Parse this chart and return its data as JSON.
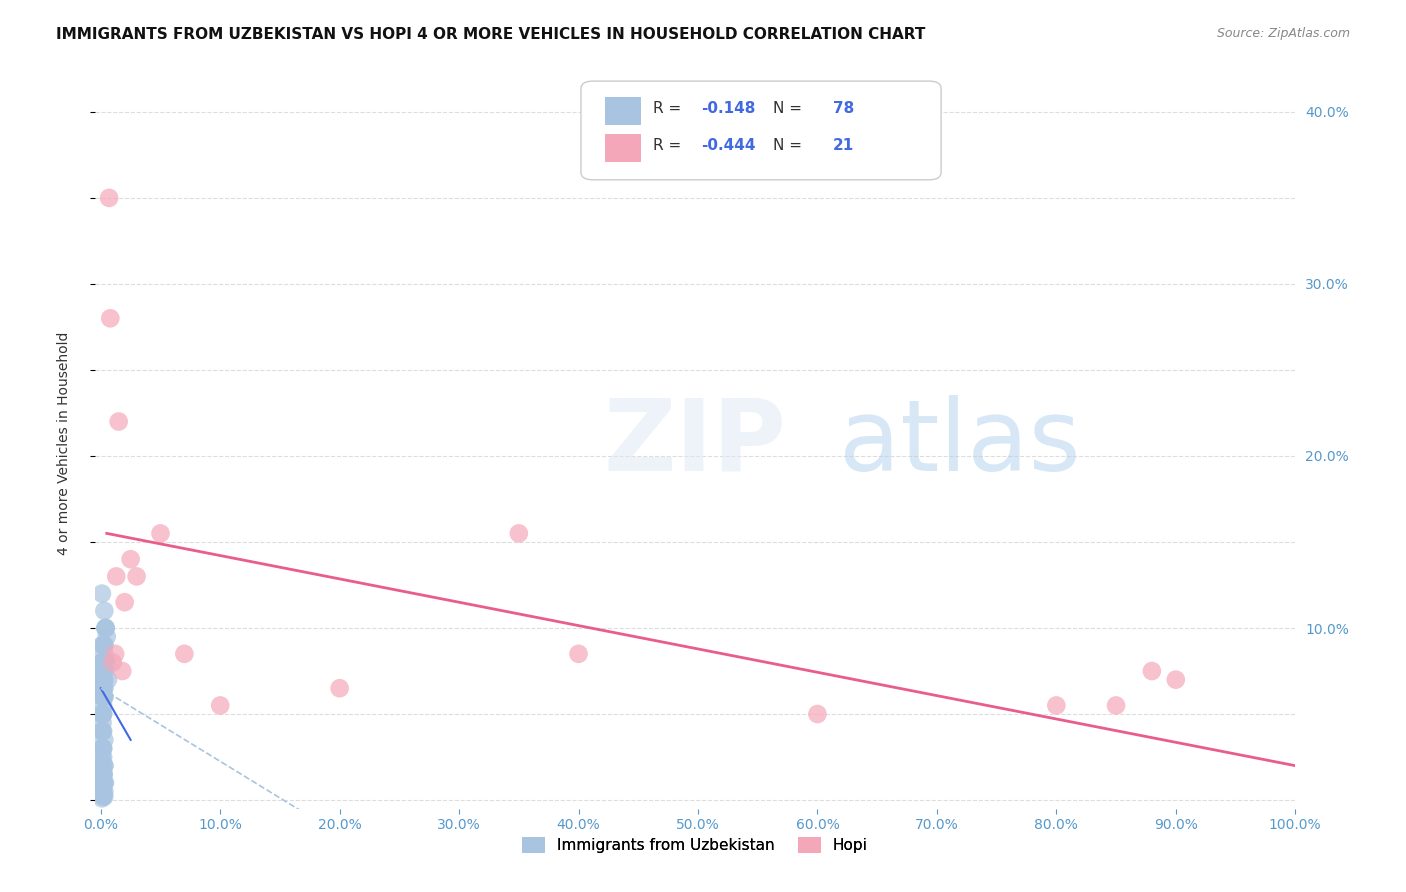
{
  "title": "IMMIGRANTS FROM UZBEKISTAN VS HOPI 4 OR MORE VEHICLES IN HOUSEHOLD CORRELATION CHART",
  "source": "Source: ZipAtlas.com",
  "xlabel": "",
  "ylabel": "4 or more Vehicles in Household",
  "legend_label_1": "Immigrants from Uzbekistan",
  "legend_label_2": "Hopi",
  "r1": -0.148,
  "n1": 78,
  "r2": -0.444,
  "n2": 21,
  "color1": "#a8c4e0",
  "color2": "#f4a7b9",
  "line_color1": "#4169e1",
  "line_color2": "#e85d8a",
  "dashed_line_color": "#a8c4e0",
  "background_color": "#ffffff",
  "grid_color": "#dddddd",
  "right_axis_color": "#5599cc",
  "title_fontsize": 11,
  "watermark": "ZIPatlas",
  "xlim": [
    -0.005,
    1.0
  ],
  "ylim": [
    -0.005,
    0.42
  ],
  "x_ticks": [
    0.0,
    0.1,
    0.2,
    0.3,
    0.4,
    0.5,
    0.6,
    0.7,
    0.8,
    0.9,
    1.0
  ],
  "y_ticks_left": [
    0.0,
    0.05,
    0.1,
    0.15,
    0.2,
    0.25,
    0.3,
    0.35,
    0.4
  ],
  "y_ticks_right_labels": [
    "",
    "10.0%",
    "20.0%",
    "30.0%",
    "40.0%"
  ],
  "y_ticks_right_vals": [
    0.0,
    0.1,
    0.2,
    0.3,
    0.4
  ],
  "uzbek_x": [
    0.001,
    0.002,
    0.001,
    0.003,
    0.0015,
    0.002,
    0.004,
    0.003,
    0.001,
    0.005,
    0.006,
    0.0025,
    0.0035,
    0.001,
    0.002,
    0.0015,
    0.003,
    0.002,
    0.001,
    0.004,
    0.005,
    0.003,
    0.0025,
    0.001,
    0.002,
    0.003,
    0.001,
    0.0015,
    0.002,
    0.0035,
    0.001,
    0.002,
    0.003,
    0.004,
    0.001,
    0.002,
    0.0015,
    0.003,
    0.002,
    0.001,
    0.0025,
    0.003,
    0.002,
    0.001,
    0.001,
    0.002,
    0.003,
    0.001,
    0.0015,
    0.002,
    0.003,
    0.002,
    0.001,
    0.001,
    0.002,
    0.001,
    0.002,
    0.001,
    0.003,
    0.002,
    0.001,
    0.0015,
    0.002,
    0.003,
    0.001,
    0.002,
    0.003,
    0.001,
    0.002,
    0.001,
    0.0015,
    0.002,
    0.003,
    0.001,
    0.002,
    0.001,
    0.002,
    0.003
  ],
  "uzbek_y": [
    0.12,
    0.09,
    0.08,
    0.11,
    0.07,
    0.06,
    0.1,
    0.09,
    0.05,
    0.08,
    0.07,
    0.065,
    0.075,
    0.04,
    0.055,
    0.045,
    0.085,
    0.05,
    0.03,
    0.1,
    0.095,
    0.07,
    0.08,
    0.06,
    0.05,
    0.065,
    0.03,
    0.02,
    0.015,
    0.01,
    0.08,
    0.07,
    0.09,
    0.1,
    0.01,
    0.015,
    0.005,
    0.08,
    0.03,
    0.02,
    0.015,
    0.01,
    0.005,
    0.09,
    0.08,
    0.07,
    0.06,
    0.05,
    0.04,
    0.03,
    0.02,
    0.01,
    0.005,
    0.025,
    0.06,
    0.075,
    0.07,
    0.065,
    0.02,
    0.015,
    0.01,
    0.065,
    0.075,
    0.06,
    0.05,
    0.04,
    0.035,
    0.03,
    0.025,
    0.02,
    0.015,
    0.01,
    0.005,
    0.003,
    0.002,
    0.001,
    0.003,
    0.002
  ],
  "hopi_x": [
    0.007,
    0.008,
    0.015,
    0.025,
    0.02,
    0.013,
    0.01,
    0.012,
    0.018,
    0.03,
    0.05,
    0.35,
    0.85,
    0.88,
    0.9,
    0.8,
    0.6,
    0.4,
    0.2,
    0.1,
    0.07
  ],
  "hopi_y": [
    0.35,
    0.28,
    0.22,
    0.14,
    0.115,
    0.13,
    0.08,
    0.085,
    0.075,
    0.13,
    0.155,
    0.155,
    0.055,
    0.075,
    0.07,
    0.055,
    0.05,
    0.085,
    0.065,
    0.055,
    0.085
  ],
  "uzbek_trend_x": [
    0.0,
    0.02
  ],
  "uzbek_trend_y": [
    0.05,
    0.03
  ],
  "hopi_trend_x": [
    0.005,
    1.0
  ],
  "hopi_trend_y": [
    0.155,
    0.025
  ]
}
